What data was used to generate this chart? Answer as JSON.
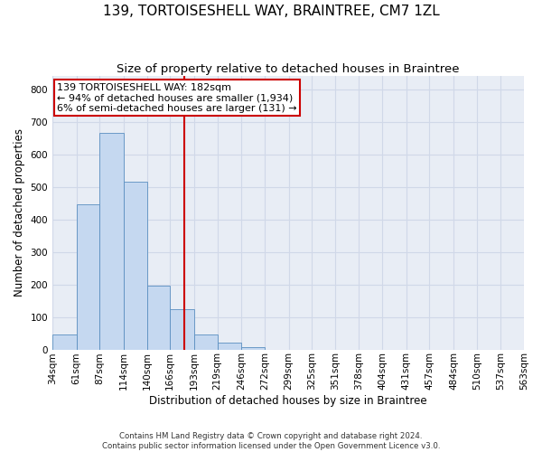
{
  "title": "139, TORTOISESHELL WAY, BRAINTREE, CM7 1ZL",
  "subtitle": "Size of property relative to detached houses in Braintree",
  "xlabel": "Distribution of detached houses by size in Braintree",
  "ylabel": "Number of detached properties",
  "bar_color": "#c5d8f0",
  "bar_edge_color": "#5a8fc0",
  "background_color": "#e8edf5",
  "grid_color": "#d0d8e8",
  "bin_edges": [
    34,
    61,
    87,
    114,
    140,
    166,
    193,
    219,
    246,
    272,
    299,
    325,
    351,
    378,
    404,
    431,
    457,
    484,
    510,
    537,
    563
  ],
  "bin_labels": [
    "34sqm",
    "61sqm",
    "87sqm",
    "114sqm",
    "140sqm",
    "166sqm",
    "193sqm",
    "219sqm",
    "246sqm",
    "272sqm",
    "299sqm",
    "325sqm",
    "351sqm",
    "378sqm",
    "404sqm",
    "431sqm",
    "457sqm",
    "484sqm",
    "510sqm",
    "537sqm",
    "563sqm"
  ],
  "counts": [
    45,
    445,
    665,
    515,
    195,
    125,
    45,
    20,
    8,
    0,
    0,
    0,
    0,
    0,
    0,
    0,
    0,
    0,
    0,
    0
  ],
  "property_size": 182,
  "vline_color": "#cc0000",
  "annotation_line1": "139 TORTOISESHELL WAY: 182sqm",
  "annotation_line2": "← 94% of detached houses are smaller (1,934)",
  "annotation_line3": "6% of semi-detached houses are larger (131) →",
  "annotation_box_color": "#ffffff",
  "annotation_box_edge": "#cc0000",
  "ylim": [
    0,
    840
  ],
  "yticks": [
    0,
    100,
    200,
    300,
    400,
    500,
    600,
    700,
    800
  ],
  "footnote": "Contains HM Land Registry data © Crown copyright and database right 2024.\nContains public sector information licensed under the Open Government Licence v3.0.",
  "title_fontsize": 11,
  "subtitle_fontsize": 9.5,
  "tick_fontsize": 7.5,
  "ylabel_fontsize": 8.5,
  "xlabel_fontsize": 8.5,
  "annot_fontsize": 8
}
